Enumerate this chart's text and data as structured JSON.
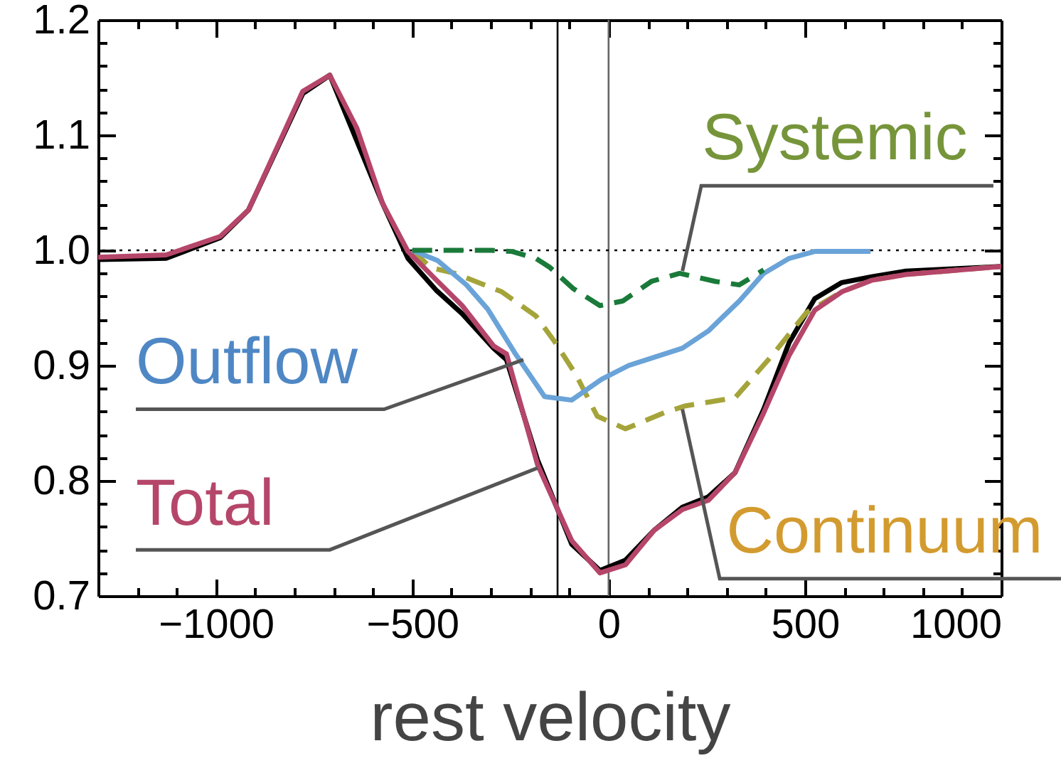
{
  "chart_data": {
    "type": "line",
    "xlabel": "rest velocity",
    "xlim": [
      -1300,
      1000
    ],
    "ylim": [
      0.7,
      1.2
    ],
    "xticks": [
      {
        "value": -1200,
        "label": null
      },
      {
        "value": -1100,
        "label": null
      },
      {
        "value": -1000,
        "label": "−1000"
      },
      {
        "value": -900,
        "label": null
      },
      {
        "value": -800,
        "label": null
      },
      {
        "value": -700,
        "label": null
      },
      {
        "value": -600,
        "label": null
      },
      {
        "value": -500,
        "label": "−500"
      },
      {
        "value": -400,
        "label": null
      },
      {
        "value": -300,
        "label": null
      },
      {
        "value": -200,
        "label": null
      },
      {
        "value": -100,
        "label": null
      },
      {
        "value": 0,
        "label": "0"
      },
      {
        "value": 100,
        "label": null
      },
      {
        "value": 200,
        "label": null
      },
      {
        "value": 300,
        "label": null
      },
      {
        "value": 400,
        "label": null
      },
      {
        "value": 500,
        "label": "500"
      },
      {
        "value": 600,
        "label": null
      },
      {
        "value": 700,
        "label": null
      },
      {
        "value": 800,
        "label": null
      },
      {
        "value": 900,
        "label": null
      },
      {
        "value": 1000,
        "label": "1000"
      }
    ],
    "yticks": [
      {
        "value": 0.7,
        "label": "0.7"
      },
      {
        "value": 0.72,
        "label": null
      },
      {
        "value": 0.74,
        "label": null
      },
      {
        "value": 0.76,
        "label": null
      },
      {
        "value": 0.78,
        "label": null
      },
      {
        "value": 0.8,
        "label": "0.8"
      },
      {
        "value": 0.82,
        "label": null
      },
      {
        "value": 0.84,
        "label": null
      },
      {
        "value": 0.86,
        "label": null
      },
      {
        "value": 0.88,
        "label": null
      },
      {
        "value": 0.9,
        "label": "0.9"
      },
      {
        "value": 0.92,
        "label": null
      },
      {
        "value": 0.94,
        "label": null
      },
      {
        "value": 0.96,
        "label": null
      },
      {
        "value": 0.98,
        "label": null
      },
      {
        "value": 1.0,
        "label": "1.0"
      },
      {
        "value": 1.02,
        "label": null
      },
      {
        "value": 1.04,
        "label": null
      },
      {
        "value": 1.06,
        "label": null
      },
      {
        "value": 1.08,
        "label": null
      },
      {
        "value": 1.1,
        "label": "1.1"
      },
      {
        "value": 1.12,
        "label": null
      },
      {
        "value": 1.14,
        "label": null
      },
      {
        "value": 1.16,
        "label": null
      },
      {
        "value": 1.18,
        "label": null
      },
      {
        "value": 1.2,
        "label": "1.2"
      }
    ],
    "grid": false,
    "marker": "none",
    "ref_lines": [
      {
        "axis": "x",
        "value": -130,
        "color": "#000000",
        "line_style": "solid"
      },
      {
        "axis": "x",
        "value": 0,
        "color": "#666666",
        "line_style": "solid"
      },
      {
        "axis": "y",
        "value": 1.0,
        "color": "#000000",
        "line_style": "dotted"
      }
    ],
    "series": [
      {
        "color": "#000000",
        "line_style": "solid",
        "x": [
          -1300,
          -1127,
          -989,
          -917,
          -779,
          -710,
          -641,
          -576,
          -511,
          -438,
          -373,
          -293,
          -260,
          -181,
          -94,
          -22,
          43,
          116,
          188,
          254,
          322,
          395,
          460,
          525,
          594,
          670,
          757,
          1000
        ],
        "values": [
          0.992,
          0.993,
          1.011,
          1.035,
          1.136,
          1.152,
          null,
          1.041,
          0.993,
          0.965,
          0.945,
          0.915,
          0.905,
          0.818,
          0.745,
          0.722,
          0.731,
          0.757,
          0.777,
          0.786,
          0.807,
          0.862,
          0.92,
          0.958,
          0.972,
          0.977,
          0.982,
          0.986
        ]
      },
      {
        "name": "Continuum",
        "color": "#a5a43a",
        "line_style": "dashed",
        "x": [
          -500,
          -453,
          -391,
          -272,
          -185,
          -138,
          -83,
          -29,
          43,
          141,
          196,
          322,
          417,
          504,
          594,
          670,
          757,
          1000
        ],
        "values": [
          1.0,
          0.985,
          0.98,
          0.964,
          0.943,
          0.921,
          0.892,
          0.856,
          0.845,
          0.859,
          0.865,
          0.872,
          0.909,
          0.946,
          0.964,
          0.974,
          0.979,
          0.986
        ]
      },
      {
        "name": "Total",
        "color": "#b5466a",
        "line_style": "solid",
        "x": [
          -1300,
          -1127,
          -989,
          -917,
          -779,
          -710,
          -641,
          -576,
          -511,
          -438,
          -373,
          -293,
          -260,
          -181,
          -94,
          -22,
          43,
          116,
          188,
          254,
          322,
          395,
          460,
          525,
          594,
          670,
          757,
          1000
        ],
        "values": [
          0.994,
          0.996,
          1.012,
          1.035,
          1.138,
          1.152,
          1.106,
          1.041,
          0.999,
          0.974,
          0.952,
          0.917,
          0.91,
          0.814,
          0.748,
          0.72,
          0.727,
          0.757,
          0.775,
          0.783,
          0.807,
          0.859,
          0.909,
          0.948,
          0.964,
          0.974,
          0.979,
          0.986
        ]
      },
      {
        "name": "Outflow",
        "color": "#6aa3d8",
        "line_style": "solid",
        "x": [
          -500,
          -435,
          -362,
          -308,
          -239,
          -163,
          -94,
          -18,
          51,
          188,
          254,
          333,
          395,
          460,
          525,
          667
        ],
        "values": [
          1.0,
          0.991,
          0.97,
          0.949,
          0.911,
          0.873,
          0.87,
          0.888,
          0.9,
          0.915,
          0.93,
          0.956,
          0.98,
          0.993,
          0.999,
          0.999
        ]
      },
      {
        "name": "Systemic",
        "color": "#1a7a3a",
        "line_style": "dashed",
        "x": [
          -500,
          -400,
          -300,
          -246,
          -185,
          -149,
          -91,
          -22,
          36,
          109,
          181,
          272,
          333,
          395
        ],
        "values": [
          1.0,
          1.0,
          1.0,
          0.999,
          0.993,
          0.985,
          0.967,
          0.952,
          0.956,
          0.973,
          0.98,
          0.973,
          0.97,
          0.983
        ]
      }
    ]
  }
}
